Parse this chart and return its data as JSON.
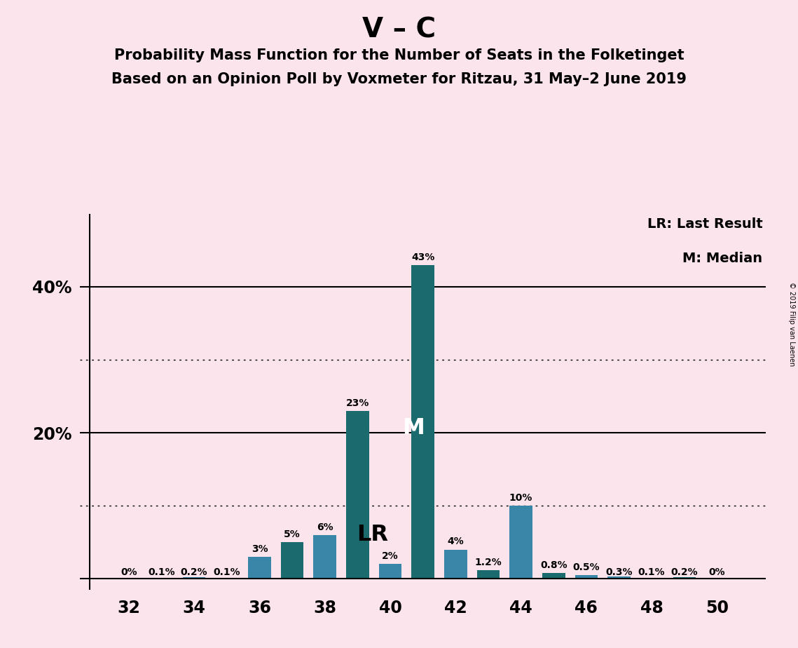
{
  "title1": "V – C",
  "title2": "Probability Mass Function for the Number of Seats in the Folketinget",
  "title3": "Based on an Opinion Poll by Voxmeter for Ritzau, 31 May–2 June 2019",
  "copyright": "© 2019 Filip van Laenen",
  "seats": [
    32,
    33,
    34,
    35,
    36,
    37,
    38,
    39,
    40,
    41,
    42,
    43,
    44,
    45,
    46,
    47,
    48,
    49,
    50
  ],
  "probabilities": [
    0.0,
    0.1,
    0.2,
    0.1,
    3.0,
    5.0,
    6.0,
    23.0,
    2.0,
    43.0,
    4.0,
    1.2,
    10.0,
    0.8,
    0.5,
    0.3,
    0.1,
    0.2,
    0.0
  ],
  "bar_colors": [
    "#3a86a8",
    "#3a86a8",
    "#3a86a8",
    "#3a86a8",
    "#3a86a8",
    "#1b6b6e",
    "#3a86a8",
    "#1b6b6e",
    "#3a86a8",
    "#1b6b6e",
    "#3a86a8",
    "#1b6b6e",
    "#3a86a8",
    "#1b6b6e",
    "#3a86a8",
    "#3a86a8",
    "#3a86a8",
    "#1b6b6e",
    "#1b6b6e"
  ],
  "teal_color": "#1b6b6e",
  "blue_color": "#3a86a8",
  "lr_seat": 40,
  "median_seat": 41,
  "background_color": "#fce4ec",
  "solid_yticks": [
    20,
    40
  ],
  "dotted_yticks": [
    10,
    30
  ],
  "label_texts": [
    "0%",
    "0.1%",
    "0.2%",
    "0.1%",
    "3%",
    "5%",
    "6%",
    "23%",
    "2%",
    "43%",
    "4%",
    "1.2%",
    "10%",
    "0.8%",
    "0.5%",
    "0.3%",
    "0.1%",
    "0.2%",
    "0%"
  ],
  "title1_fontsize": 28,
  "title2_fontsize": 15,
  "title3_fontsize": 15,
  "tick_fontsize": 17,
  "label_fontsize": 10,
  "legend_fontsize": 14,
  "lr_fontsize": 23,
  "m_fontsize": 23
}
